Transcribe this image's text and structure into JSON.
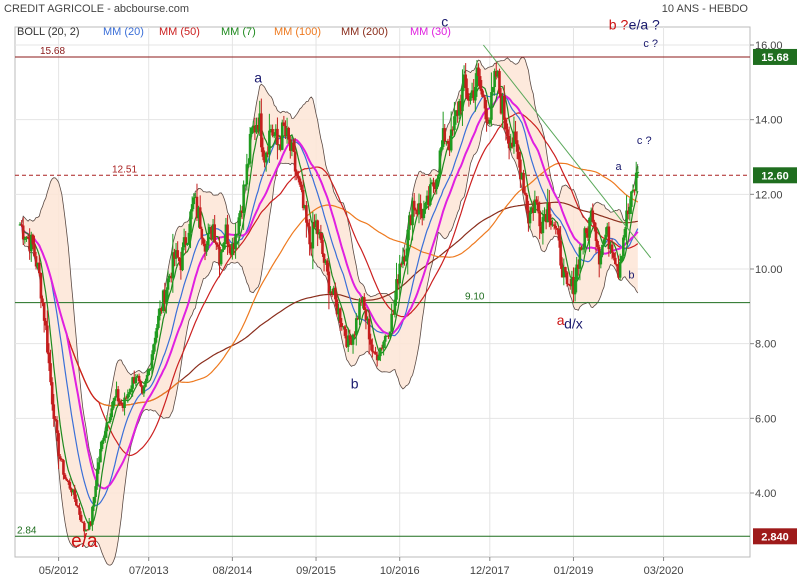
{
  "title_left": "CREDIT AGRICOLE - abcbourse.com",
  "title_right": "10 ANS - HEBDO",
  "legend": [
    {
      "label": "BOLL (20, 2)",
      "color": "#333333"
    },
    {
      "label": "MM (20)",
      "color": "#3b6fd8"
    },
    {
      "label": "MM (50)",
      "color": "#cc2020"
    },
    {
      "label": "MM (7)",
      "color": "#1f8a1f"
    },
    {
      "label": "MM (100)",
      "color": "#ee7a20"
    },
    {
      "label": "MM (200)",
      "color": "#8a2d1c"
    },
    {
      "label": "MM (30)",
      "color": "#e020e0"
    }
  ],
  "chart_data": {
    "type": "candlestick",
    "y_axis": {
      "min": 2.5,
      "max": 16.4,
      "ticks": [
        "16.00",
        "14.00",
        "12.00",
        "10.00",
        "8.00",
        "6.00",
        "4.00"
      ]
    },
    "x_axis": {
      "ticks": [
        "05/2012",
        "07/2013",
        "08/2014",
        "09/2015",
        "10/2016",
        "12/2017",
        "01/2019",
        "03/2020"
      ]
    },
    "weekly_close_path": [
      [
        "2011-11",
        11.2
      ],
      [
        "2011-12",
        10.9
      ],
      [
        "2012-01",
        10.6
      ],
      [
        "2012-02",
        9.8
      ],
      [
        "2012-03",
        8.4
      ],
      [
        "2012-04",
        6.5
      ],
      [
        "2012-05",
        5.1
      ],
      [
        "2012-06",
        4.4
      ],
      [
        "2012-07",
        4.1
      ],
      [
        "2012-08",
        3.6
      ],
      [
        "2012-09",
        3.0
      ],
      [
        "2012-10",
        3.2
      ],
      [
        "2012-11",
        4.6
      ],
      [
        "2012-12",
        5.6
      ],
      [
        "2013-01",
        6.2
      ],
      [
        "2013-02",
        6.6
      ],
      [
        "2013-03",
        6.3
      ],
      [
        "2013-04",
        6.8
      ],
      [
        "2013-05",
        7.2
      ],
      [
        "2013-06",
        6.5
      ],
      [
        "2013-07",
        7.3
      ],
      [
        "2013-08",
        8.3
      ],
      [
        "2013-09",
        9.0
      ],
      [
        "2013-10",
        9.7
      ],
      [
        "2013-11",
        10.3
      ],
      [
        "2013-12",
        10.2
      ],
      [
        "2014-01",
        11.0
      ],
      [
        "2014-02",
        11.8
      ],
      [
        "2014-03",
        11.3
      ],
      [
        "2014-04",
        10.6
      ],
      [
        "2014-05",
        11.2
      ],
      [
        "2014-06",
        10.4
      ],
      [
        "2014-07",
        11.0
      ],
      [
        "2014-08",
        10.6
      ],
      [
        "2014-09",
        11.4
      ],
      [
        "2014-10",
        12.3
      ],
      [
        "2014-11",
        13.6
      ],
      [
        "2014-12",
        14.1
      ],
      [
        "2015-01",
        13.1
      ],
      [
        "2015-02",
        13.8
      ],
      [
        "2015-03",
        13.3
      ],
      [
        "2015-04",
        13.7
      ],
      [
        "2015-05",
        13.2
      ],
      [
        "2015-06",
        12.5
      ],
      [
        "2015-07",
        11.6
      ],
      [
        "2015-08",
        10.7
      ],
      [
        "2015-09",
        11.2
      ],
      [
        "2015-10",
        10.4
      ],
      [
        "2015-11",
        9.6
      ],
      [
        "2015-12",
        9.1
      ],
      [
        "2016-01",
        8.6
      ],
      [
        "2016-02",
        8.0
      ],
      [
        "2016-03",
        8.4
      ],
      [
        "2016-04",
        9.2
      ],
      [
        "2016-05",
        8.5
      ],
      [
        "2016-06",
        7.6
      ],
      [
        "2016-07",
        7.9
      ],
      [
        "2016-08",
        8.3
      ],
      [
        "2016-09",
        8.8
      ],
      [
        "2016-10",
        10.2
      ],
      [
        "2016-11",
        10.6
      ],
      [
        "2016-12",
        11.8
      ],
      [
        "2017-01",
        11.6
      ],
      [
        "2017-02",
        11.5
      ],
      [
        "2017-03",
        12.1
      ],
      [
        "2017-04",
        12.8
      ],
      [
        "2017-05",
        13.6
      ],
      [
        "2017-06",
        13.4
      ],
      [
        "2017-07",
        14.3
      ],
      [
        "2017-08",
        14.8
      ],
      [
        "2017-09",
        14.6
      ],
      [
        "2017-10",
        15.1
      ],
      [
        "2017-11",
        14.5
      ],
      [
        "2017-12",
        14.1
      ],
      [
        "2018-01",
        15.2
      ],
      [
        "2018-02",
        14.3
      ],
      [
        "2018-03",
        13.6
      ],
      [
        "2018-04",
        13.2
      ],
      [
        "2018-05",
        12.6
      ],
      [
        "2018-06",
        11.4
      ],
      [
        "2018-07",
        11.8
      ],
      [
        "2018-08",
        11.3
      ],
      [
        "2018-09",
        11.7
      ],
      [
        "2018-10",
        11.2
      ],
      [
        "2018-11",
        10.3
      ],
      [
        "2018-12",
        9.4
      ],
      [
        "2019-01",
        9.6
      ],
      [
        "2019-02",
        10.5
      ],
      [
        "2019-03",
        10.9
      ],
      [
        "2019-04",
        11.6
      ],
      [
        "2019-05",
        10.4
      ],
      [
        "2019-06",
        10.9
      ],
      [
        "2019-07",
        10.7
      ],
      [
        "2019-08",
        10.0
      ],
      [
        "2019-09",
        11.2
      ],
      [
        "2019-10",
        11.8
      ],
      [
        "2019-11",
        12.6
      ]
    ],
    "horizontal_levels": [
      {
        "label": "15.68",
        "value": 15.68,
        "color": "#8b1a1a",
        "style": "solid",
        "badge": "15.68",
        "badge_bg": "#1f6e1f"
      },
      {
        "label": "12.51",
        "value": 12.51,
        "color": "#aa2020",
        "style": "dashed",
        "badge": "12.60",
        "badge_bg": "#1f6e1f"
      },
      {
        "label": "9.10",
        "value": 9.1,
        "color": "#1f6e1f",
        "style": "solid"
      },
      {
        "label": "2.84",
        "value": 2.84,
        "color": "#1f6e1f",
        "style": "solid",
        "badge": "2.840",
        "badge_bg": "#9e1a1a"
      }
    ],
    "trendline": {
      "from": [
        "2017-11",
        16.0
      ],
      "to": [
        "2020-01",
        10.3
      ],
      "color": "#5aa85a"
    },
    "annotations": [
      {
        "text": "e/a",
        "date": "2012-09",
        "value": 2.55,
        "color": "#cc1111",
        "size": "large"
      },
      {
        "text": "a",
        "date": "2014-12",
        "value": 15.0,
        "color": "#1a1a6e",
        "size": "medium"
      },
      {
        "text": "b",
        "date": "2016-03",
        "value": 6.8,
        "color": "#1a1a6e",
        "size": "medium"
      },
      {
        "text": "c",
        "date": "2017-05",
        "value": 16.5,
        "color": "#1a1a6e",
        "size": "medium"
      },
      {
        "text": "a",
        "date": "2018-11",
        "value": 8.5,
        "color": "#cc1111",
        "size": "medium"
      },
      {
        "text": "d/x",
        "date": "2019-01",
        "value": 8.4,
        "color": "#1a1a6e",
        "size": "medium"
      },
      {
        "text": "a",
        "date": "2019-08",
        "value": 12.65,
        "color": "#1a1a6e",
        "size": "small"
      },
      {
        "text": "b",
        "date": "2019-10",
        "value": 9.75,
        "color": "#1a1a6e",
        "size": "small"
      },
      {
        "text": "c ?",
        "date": "2019-12",
        "value": 13.35,
        "color": "#1a1a6e",
        "size": "small"
      },
      {
        "text": "c ?",
        "date": "2020-01",
        "value": 15.95,
        "color": "#1a1a6e",
        "size": "small"
      },
      {
        "text": "b ?",
        "date": "2019-08",
        "value": 16.42,
        "color": "#cc1111",
        "size": "medium"
      },
      {
        "text": "e/a ?",
        "date": "2019-12",
        "value": 16.42,
        "color": "#1a1a6e",
        "size": "medium"
      }
    ]
  }
}
